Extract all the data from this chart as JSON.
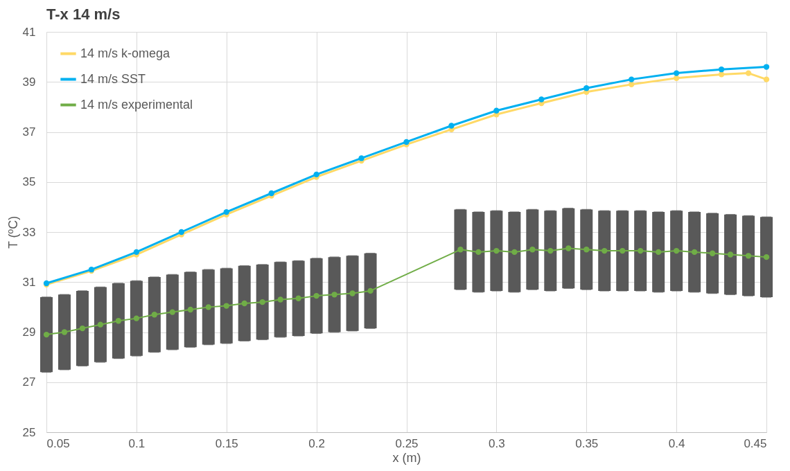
{
  "chart_data": {
    "type": "line",
    "title": "T-x 14 m/s",
    "xlabel": "x (m)",
    "ylabel": "T (ºC)",
    "xlim": [
      0.05,
      0.45
    ],
    "xticks": [
      0.05,
      0.1,
      0.15,
      0.2,
      0.25,
      0.3,
      0.35,
      0.4,
      0.45
    ],
    "ylim": [
      25,
      41
    ],
    "yticks": [
      25,
      27,
      29,
      31,
      33,
      35,
      37,
      39,
      41
    ],
    "grid": true,
    "legend": "top left",
    "marker": "circle",
    "line_style": "solid",
    "series": [
      {
        "name": "14 m/s k-omega",
        "color": "#ffd966",
        "x": [
          0.05,
          0.075,
          0.1,
          0.125,
          0.15,
          0.175,
          0.2,
          0.225,
          0.25,
          0.275,
          0.3,
          0.325,
          0.35,
          0.375,
          0.4,
          0.425,
          0.44,
          0.45
        ],
        "values": [
          30.9,
          31.45,
          32.1,
          32.9,
          33.7,
          34.45,
          35.2,
          35.85,
          36.5,
          37.1,
          37.7,
          38.15,
          38.6,
          38.9,
          39.15,
          39.3,
          39.35,
          39.1
        ]
      },
      {
        "name": "14 m/s SST",
        "color": "#00b0f0",
        "x": [
          0.05,
          0.075,
          0.1,
          0.125,
          0.15,
          0.175,
          0.2,
          0.225,
          0.25,
          0.275,
          0.3,
          0.325,
          0.35,
          0.375,
          0.4,
          0.425,
          0.45
        ],
        "values": [
          30.95,
          31.5,
          32.2,
          33.0,
          33.8,
          34.55,
          35.3,
          35.95,
          36.6,
          37.25,
          37.85,
          38.3,
          38.75,
          39.1,
          39.35,
          39.5,
          39.6
        ]
      },
      {
        "name": "14 m/s experimental",
        "color": "#70ad47",
        "x": [
          0.05,
          0.06,
          0.07,
          0.08,
          0.09,
          0.1,
          0.11,
          0.12,
          0.13,
          0.14,
          0.15,
          0.16,
          0.17,
          0.18,
          0.19,
          0.2,
          0.21,
          0.22,
          0.23,
          0.28,
          0.29,
          0.3,
          0.31,
          0.32,
          0.33,
          0.34,
          0.35,
          0.36,
          0.37,
          0.38,
          0.39,
          0.4,
          0.41,
          0.42,
          0.43,
          0.44,
          0.45
        ],
        "values": [
          28.9,
          29.0,
          29.15,
          29.3,
          29.45,
          29.55,
          29.7,
          29.8,
          29.9,
          30.0,
          30.05,
          30.15,
          30.2,
          30.3,
          30.35,
          30.45,
          30.5,
          30.55,
          30.65,
          32.3,
          32.2,
          32.25,
          32.2,
          32.3,
          32.25,
          32.35,
          32.3,
          32.25,
          32.25,
          32.25,
          32.2,
          32.25,
          32.2,
          32.15,
          32.1,
          32.05,
          32.0
        ],
        "errors": [
          1.5,
          1.5,
          1.5,
          1.5,
          1.5,
          1.5,
          1.5,
          1.5,
          1.5,
          1.5,
          1.5,
          1.5,
          1.5,
          1.5,
          1.5,
          1.5,
          1.5,
          1.5,
          1.5,
          1.6,
          1.6,
          1.6,
          1.6,
          1.6,
          1.6,
          1.6,
          1.6,
          1.6,
          1.6,
          1.6,
          1.6,
          1.6,
          1.6,
          1.6,
          1.6,
          1.6,
          1.6
        ]
      }
    ]
  }
}
